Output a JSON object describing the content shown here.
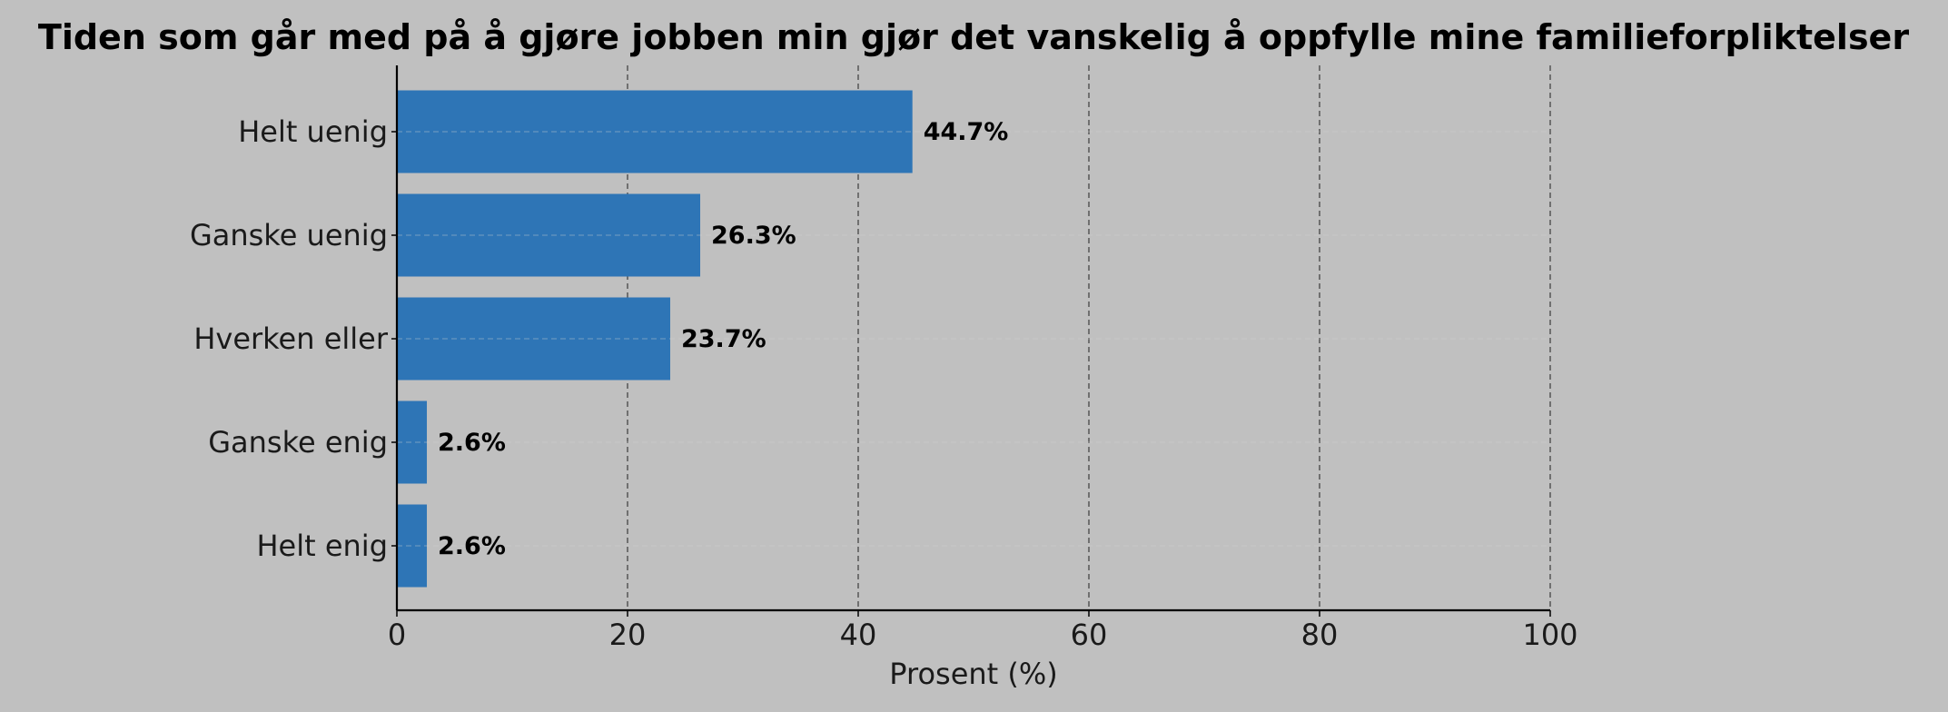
{
  "chart_data": {
    "type": "bar",
    "orientation": "horizontal",
    "title": "Tiden som går med på å gjøre jobben min gjør det vanskelig å oppfylle mine familieforpliktelser",
    "xlabel": "Prosent (%)",
    "ylabel": "",
    "categories": [
      "Helt uenig",
      "Ganske uenig",
      "Hverken eller",
      "Ganske enig",
      "Helt enig"
    ],
    "values": [
      44.7,
      26.3,
      23.7,
      2.6,
      2.6
    ],
    "value_labels": [
      "44.7%",
      "26.3%",
      "23.7%",
      "2.6%",
      "2.6%"
    ],
    "xlim": [
      0,
      100
    ],
    "xticks": [
      0,
      20,
      40,
      60,
      80,
      100
    ],
    "xtick_labels": [
      "0",
      "20",
      "40",
      "60",
      "80",
      "100"
    ],
    "grid": "x-axis dashed",
    "legend": "none",
    "colors": {
      "bar": "#2e75b6",
      "background": "#c0c0c0",
      "grid": "#3a3a3a",
      "axis": "#000000"
    }
  }
}
